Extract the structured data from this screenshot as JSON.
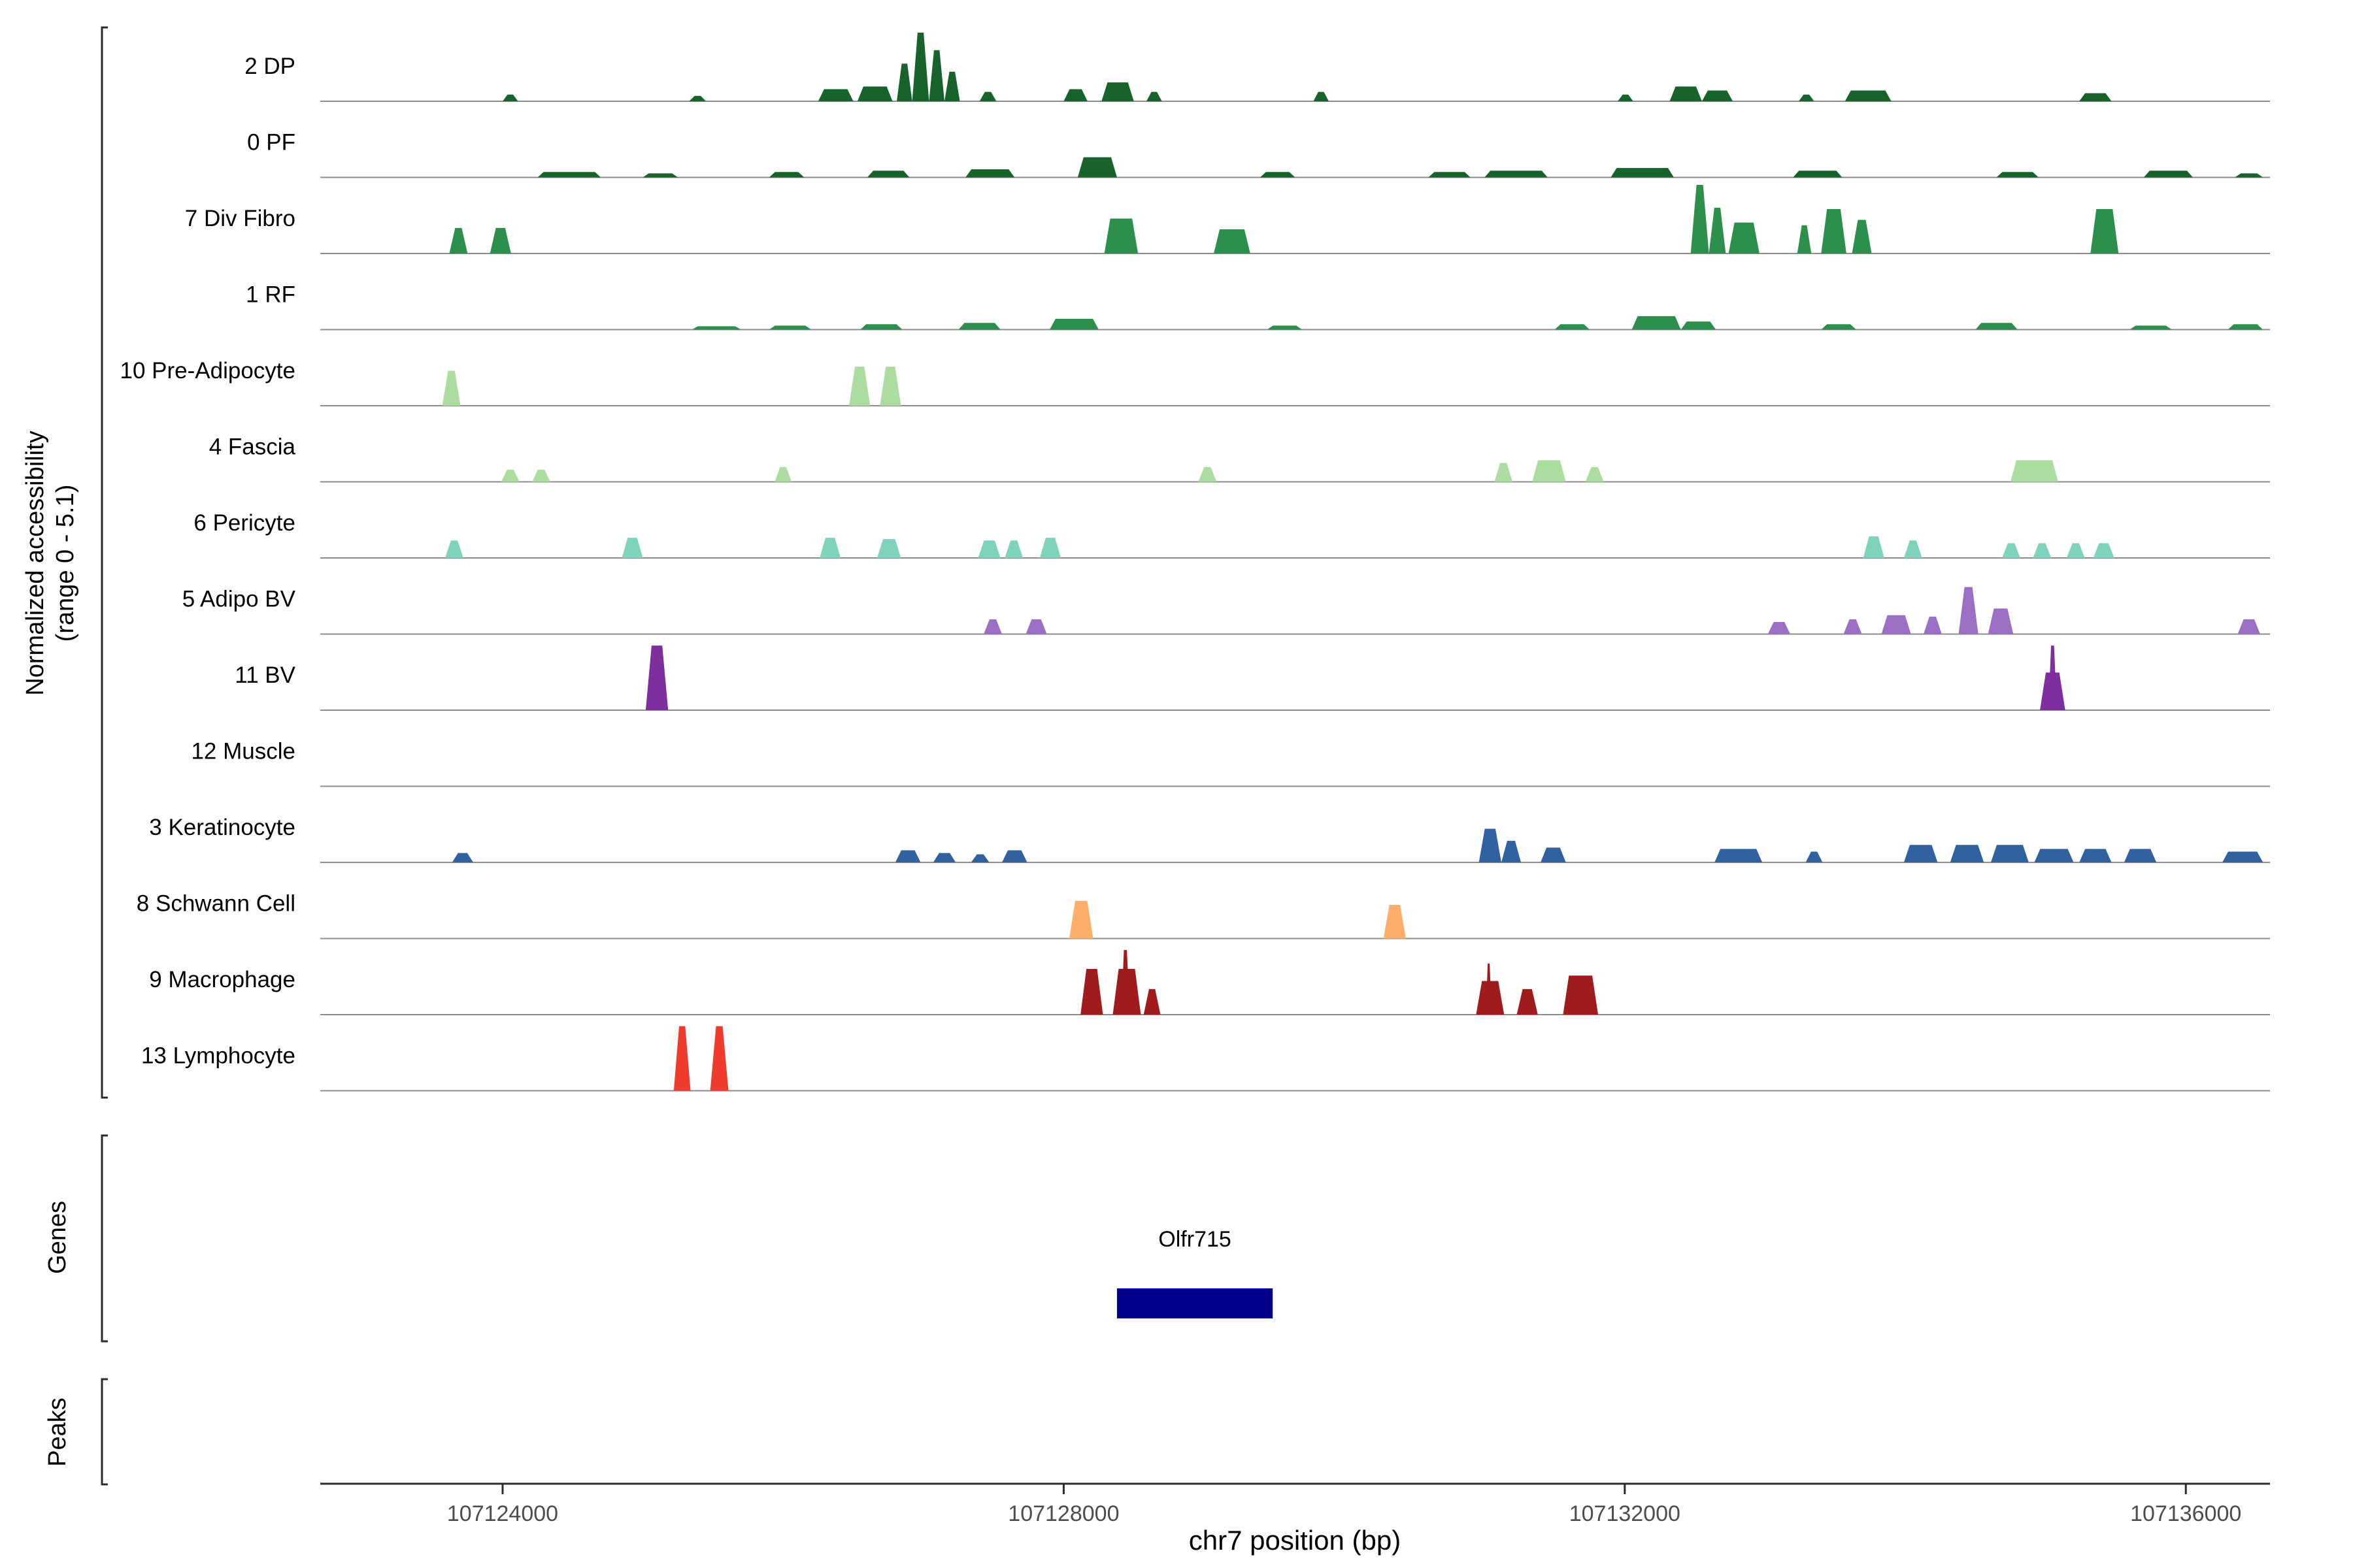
{
  "figure": {
    "y_axis_label_line1": "Normalized accessibility",
    "y_axis_label_line2": "(range 0 - 5.1)",
    "genes_label": "Genes",
    "peaks_label": "Peaks",
    "x_axis_title": "chr7 position (bp)"
  },
  "chart_data": {
    "type": "area",
    "title": "",
    "xlabel": "chr7 position (bp)",
    "ylabel": "Normalized accessibility (range 0 - 5.1)",
    "x_domain_bp": [
      107122700,
      107136600
    ],
    "x_ticks": [
      107124000,
      107128000,
      107132000,
      107136000
    ],
    "x_tick_labels": [
      "107124000",
      "107128000",
      "107132000",
      "107136000"
    ],
    "signal_range": [
      0,
      5.1
    ],
    "grid": false,
    "legend": "none",
    "tracks": [
      {
        "label": "2 DP",
        "color": "#17632b",
        "peaks": [
          [
            107124000,
            107124110,
            0.5
          ],
          [
            107125330,
            107125450,
            0.4
          ],
          [
            107126250,
            107126500,
            0.9
          ],
          [
            107126530,
            107126780,
            1.1
          ],
          [
            107126810,
            107126920,
            2.8
          ],
          [
            107126920,
            107127040,
            5.1
          ],
          [
            107127040,
            107127150,
            3.8
          ],
          [
            107127150,
            107127260,
            2.2
          ],
          [
            107127400,
            107127520,
            0.7
          ],
          [
            107128000,
            107128170,
            0.9
          ],
          [
            107128270,
            107128500,
            1.4
          ],
          [
            107128590,
            107128700,
            0.7
          ],
          [
            107129780,
            107129890,
            0.7
          ],
          [
            107131950,
            107132060,
            0.5
          ],
          [
            107132320,
            107132550,
            1.1
          ],
          [
            107132550,
            107132770,
            0.8
          ],
          [
            107133240,
            107133350,
            0.5
          ],
          [
            107133570,
            107133900,
            0.8
          ],
          [
            107135240,
            107135470,
            0.6
          ]
        ]
      },
      {
        "label": "0 PF",
        "color": "#17632b",
        "peaks": [
          [
            107124250,
            107124700,
            0.4
          ],
          [
            107125000,
            107125250,
            0.3
          ],
          [
            107125900,
            107126150,
            0.4
          ],
          [
            107126600,
            107126900,
            0.5
          ],
          [
            107127300,
            107127650,
            0.6
          ],
          [
            107128100,
            107128380,
            1.5
          ],
          [
            107129400,
            107129650,
            0.4
          ],
          [
            107130600,
            107130900,
            0.4
          ],
          [
            107131000,
            107131450,
            0.5
          ],
          [
            107131900,
            107132350,
            0.7
          ],
          [
            107133200,
            107133550,
            0.5
          ],
          [
            107134650,
            107134950,
            0.4
          ],
          [
            107135700,
            107136050,
            0.5
          ],
          [
            107136350,
            107136550,
            0.3
          ]
        ]
      },
      {
        "label": "7 Div Fibro",
        "color": "#2c8f4c",
        "peaks": [
          [
            107123620,
            107123750,
            1.9
          ],
          [
            107123910,
            107124060,
            1.9
          ],
          [
            107128290,
            107128530,
            2.6
          ],
          [
            107129070,
            107129330,
            1.8
          ],
          [
            107132470,
            107132600,
            5.1
          ],
          [
            107132600,
            107132720,
            3.4
          ],
          [
            107132740,
            107132960,
            2.3
          ],
          [
            107133230,
            107133330,
            2.1
          ],
          [
            107133400,
            107133580,
            3.3
          ],
          [
            107133620,
            107133760,
            2.5
          ],
          [
            107135320,
            107135520,
            3.3
          ]
        ]
      },
      {
        "label": "1 RF",
        "color": "#2c8f4c",
        "peaks": [
          [
            107125350,
            107125700,
            0.25
          ],
          [
            107125900,
            107126200,
            0.3
          ],
          [
            107126550,
            107126850,
            0.4
          ],
          [
            107127250,
            107127550,
            0.5
          ],
          [
            107127900,
            107128250,
            0.8
          ],
          [
            107129450,
            107129700,
            0.3
          ],
          [
            107131500,
            107131750,
            0.4
          ],
          [
            107132050,
            107132400,
            1.0
          ],
          [
            107132400,
            107132650,
            0.6
          ],
          [
            107133400,
            107133650,
            0.4
          ],
          [
            107134500,
            107134800,
            0.5
          ],
          [
            107135600,
            107135900,
            0.3
          ],
          [
            107136300,
            107136550,
            0.4
          ]
        ]
      },
      {
        "label": "10 Pre-Adipocyte",
        "color": "#acdc9f",
        "peaks": [
          [
            107123570,
            107123700,
            2.6
          ],
          [
            107126470,
            107126620,
            2.9
          ],
          [
            107126690,
            107126840,
            2.9
          ]
        ]
      },
      {
        "label": "4 Fascia",
        "color": "#acdc9f",
        "peaks": [
          [
            107123990,
            107124120,
            0.9
          ],
          [
            107124210,
            107124340,
            0.9
          ],
          [
            107125940,
            107126060,
            1.1
          ],
          [
            107128960,
            107129090,
            1.1
          ],
          [
            107131070,
            107131200,
            1.4
          ],
          [
            107131340,
            107131580,
            1.6
          ],
          [
            107131720,
            107131850,
            1.1
          ],
          [
            107134750,
            107135090,
            1.6
          ]
        ]
      },
      {
        "label": "6 Pericyte",
        "color": "#80d3bb",
        "peaks": [
          [
            107123590,
            107123720,
            1.3
          ],
          [
            107124850,
            107125000,
            1.5
          ],
          [
            107126260,
            107126410,
            1.5
          ],
          [
            107126670,
            107126840,
            1.4
          ],
          [
            107127390,
            107127550,
            1.3
          ],
          [
            107127580,
            107127710,
            1.3
          ],
          [
            107127830,
            107127980,
            1.5
          ],
          [
            107133700,
            107133850,
            1.6
          ],
          [
            107133990,
            107134120,
            1.3
          ],
          [
            107134690,
            107134820,
            1.1
          ],
          [
            107134910,
            107135040,
            1.1
          ],
          [
            107135150,
            107135280,
            1.1
          ],
          [
            107135340,
            107135490,
            1.1
          ]
        ]
      },
      {
        "label": "5 Adipo BV",
        "color": "#9a6fc4",
        "peaks": [
          [
            107127430,
            107127560,
            1.1
          ],
          [
            107127730,
            107127880,
            1.1
          ],
          [
            107133020,
            107133180,
            0.9
          ],
          [
            107133560,
            107133690,
            1.1
          ],
          [
            107133830,
            107134040,
            1.4
          ],
          [
            107134130,
            107134260,
            1.3
          ],
          [
            107134380,
            107134520,
            3.5
          ],
          [
            107134590,
            107134770,
            1.9
          ],
          [
            107136370,
            107136530,
            1.1
          ]
        ]
      },
      {
        "label": "11 BV",
        "color": "#7d2f9e",
        "peaks": [
          [
            107125020,
            107125180,
            4.8
          ],
          [
            107134960,
            107135140,
            2.8
          ],
          [
            107135020,
            107135080,
            4.8
          ]
        ]
      },
      {
        "label": "12 Muscle",
        "color": null,
        "peaks": []
      },
      {
        "label": "3 Keratinocyte",
        "color": "#31619f",
        "peaks": [
          [
            107123640,
            107123790,
            0.7
          ],
          [
            107126800,
            107126980,
            0.9
          ],
          [
            107127070,
            107127230,
            0.7
          ],
          [
            107127340,
            107127470,
            0.6
          ],
          [
            107127560,
            107127740,
            0.9
          ],
          [
            107130960,
            107131120,
            2.5
          ],
          [
            107131120,
            107131260,
            1.6
          ],
          [
            107131400,
            107131580,
            1.1
          ],
          [
            107132640,
            107132980,
            1.0
          ],
          [
            107133290,
            107133410,
            0.8
          ],
          [
            107133990,
            107134230,
            1.3
          ],
          [
            107134320,
            107134560,
            1.3
          ],
          [
            107134610,
            107134880,
            1.3
          ],
          [
            107134920,
            107135200,
            1.0
          ],
          [
            107135240,
            107135470,
            1.0
          ],
          [
            107135560,
            107135790,
            1.0
          ],
          [
            107136260,
            107136550,
            0.8
          ]
        ]
      },
      {
        "label": "8 Schwann Cell",
        "color": "#fdae6b",
        "peaks": [
          [
            107128040,
            107128210,
            2.8
          ],
          [
            107130280,
            107130440,
            2.5
          ]
        ]
      },
      {
        "label": "9 Macrophage",
        "color": "#a01c1c",
        "peaks": [
          [
            107128120,
            107128280,
            3.4
          ],
          [
            107128350,
            107128550,
            3.4
          ],
          [
            107128410,
            107128470,
            4.8
          ],
          [
            107128570,
            107128690,
            1.9
          ],
          [
            107130940,
            107131140,
            2.5
          ],
          [
            107131010,
            107131050,
            3.8
          ],
          [
            107131230,
            107131380,
            1.9
          ],
          [
            107131560,
            107131810,
            2.9
          ]
        ]
      },
      {
        "label": "13 Lymphocyte",
        "color": "#ef3b2c",
        "peaks": [
          [
            107125220,
            107125340,
            4.8
          ],
          [
            107125480,
            107125610,
            4.8
          ]
        ]
      }
    ],
    "gene": {
      "name": "Olfr715",
      "start": 107128380,
      "end": 107129490,
      "color": "#00008b"
    },
    "peaks_track": {
      "items": []
    }
  }
}
